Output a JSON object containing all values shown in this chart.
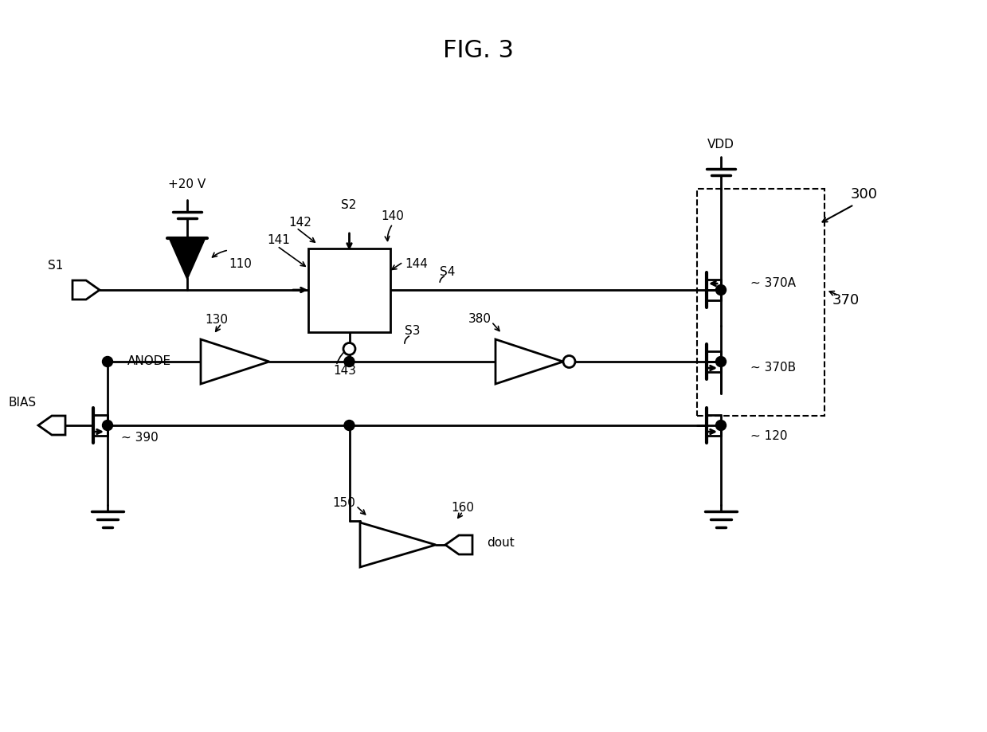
{
  "title": "FIG. 3",
  "figure_number": "300",
  "background_color": "#ffffff",
  "line_color": "#000000",
  "line_width": 2.0,
  "labels": {
    "title": "FIG. 3",
    "fig_ref": "300",
    "vdd": "VDD",
    "v20": "+20 V",
    "bias": "BIAS",
    "anode": "ANODE",
    "s1": "S1",
    "s2": "S2",
    "s3": "S3",
    "s4": "S4",
    "dout": "dout",
    "ref110": "110",
    "ref120": "120",
    "ref130": "130",
    "ref140": "140",
    "ref141": "141",
    "ref142": "142",
    "ref143": "143",
    "ref144": "144",
    "ref150": "150",
    "ref160": "160",
    "ref370": "370",
    "ref370A": "370A",
    "ref370B": "370B",
    "ref380": "380",
    "ref390": "390"
  }
}
